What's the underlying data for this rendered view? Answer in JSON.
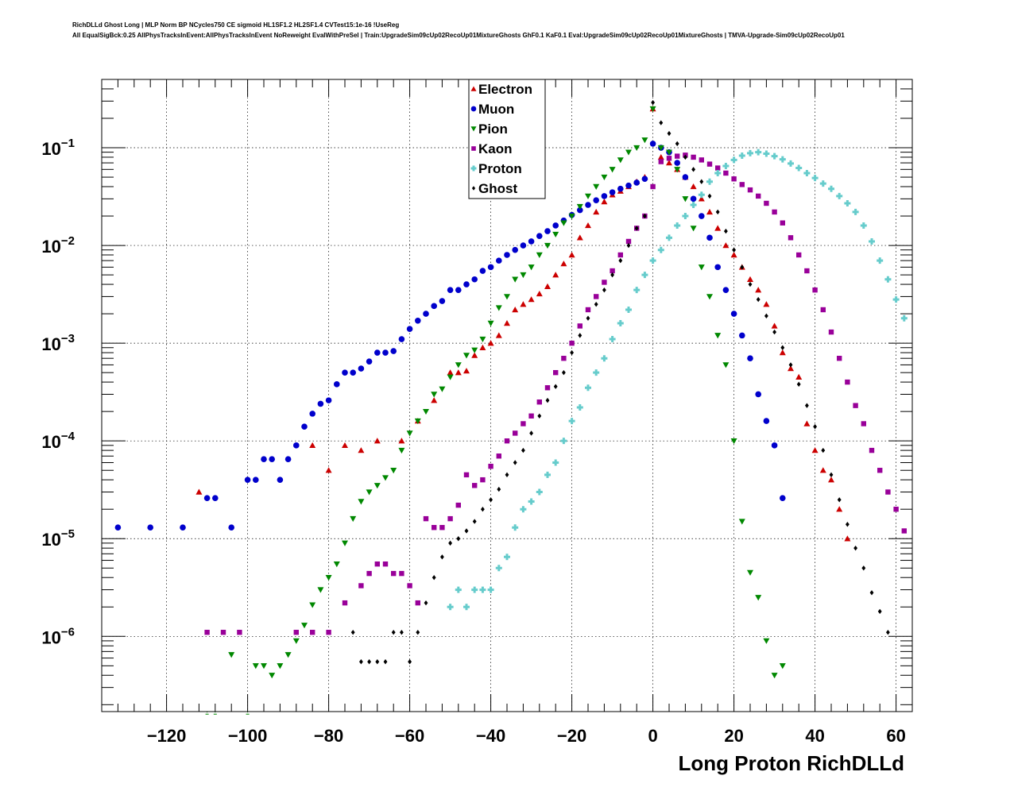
{
  "header": {
    "line1": "RichDLLd Ghost Long | MLP Norm BP NCycles750 CE sigmoid HL1SF1.2 HL2SF1.4 CVTest15:1e-16 !UseReg",
    "line2": "All EqualSigBck:0.25 AllPhysTracksInEvent:AllPhysTracksInEvent NoReweight EvalWithPreSel | Train:UpgradeSim09cUp02RecoUp01MixtureGhosts GhF0.1 KaF0.1 Eval:UpgradeSim09cUp02RecoUp01MixtureGhosts | TMVA-Upgrade-Sim09cUp02RecoUp01"
  },
  "chart_data": {
    "type": "scatter",
    "title": "",
    "xlabel": "Long Proton RichDLLd",
    "ylabel": "",
    "xlim": [
      -136,
      64
    ],
    "ylim": [
      1.7e-07,
      0.5
    ],
    "yscale": "log",
    "grid": true,
    "legend_position": "top-center",
    "x_ticks": [
      -120,
      -100,
      -80,
      -60,
      -40,
      -20,
      0,
      20,
      40,
      60
    ],
    "x_tick_labels": [
      "−120",
      "−100",
      "−80",
      "−60",
      "−40",
      "−20",
      "0",
      "20",
      "40",
      "60"
    ],
    "y_ticks": [
      {
        "value": 1e-06,
        "base": "10",
        "exp": "−6"
      },
      {
        "value": 1e-05,
        "base": "10",
        "exp": "−5"
      },
      {
        "value": 0.0001,
        "base": "10",
        "exp": "−4"
      },
      {
        "value": 0.001,
        "base": "10",
        "exp": "−3"
      },
      {
        "value": 0.01,
        "base": "10",
        "exp": "−2"
      },
      {
        "value": 0.1,
        "base": "10",
        "exp": "−1"
      }
    ],
    "series": [
      {
        "name": "Electron",
        "color": "#cc0000",
        "marker": "triangle-up",
        "x": [
          -112,
          -84,
          -80,
          -76,
          -72,
          -68,
          -62,
          -58,
          -54,
          -50,
          -48,
          -46,
          -44,
          -42,
          -40,
          -38,
          -36,
          -34,
          -32,
          -30,
          -28,
          -26,
          -24,
          -22,
          -20,
          -18,
          -16,
          -14,
          -12,
          -10,
          -8,
          -6,
          -4,
          -2,
          0,
          2,
          4,
          6,
          8,
          10,
          12,
          14,
          16,
          18,
          20,
          22,
          24,
          26,
          28,
          30,
          32,
          34,
          36,
          38,
          40,
          42,
          44,
          46,
          48
        ],
        "y": [
          3e-05,
          9e-05,
          5e-05,
          9e-05,
          8e-05,
          0.0001,
          0.0001,
          0.00016,
          0.00026,
          0.0005,
          0.0005,
          0.00052,
          0.00075,
          0.0009,
          0.001,
          0.0012,
          0.0016,
          0.0022,
          0.0025,
          0.0028,
          0.0032,
          0.0038,
          0.005,
          0.0065,
          0.008,
          0.012,
          0.016,
          0.022,
          0.028,
          0.033,
          0.036,
          0.04,
          0.045,
          0.05,
          0.25,
          0.08,
          0.07,
          0.06,
          0.05,
          0.04,
          0.03,
          0.022,
          0.015,
          0.01,
          0.008,
          0.006,
          0.0045,
          0.0035,
          0.0025,
          0.0015,
          0.0008,
          0.00055,
          0.00045,
          0.00015,
          8e-05,
          5e-05,
          4e-05,
          2e-05,
          1e-05
        ]
      },
      {
        "name": "Muon",
        "color": "#0000cc",
        "marker": "circle",
        "x": [
          -132,
          -124,
          -116,
          -110,
          -108,
          -104,
          -100,
          -98,
          -96,
          -94,
          -92,
          -90,
          -88,
          -86,
          -84,
          -82,
          -80,
          -78,
          -76,
          -74,
          -72,
          -70,
          -68,
          -66,
          -64,
          -62,
          -60,
          -58,
          -56,
          -54,
          -52,
          -50,
          -48,
          -46,
          -44,
          -42,
          -40,
          -38,
          -36,
          -34,
          -32,
          -30,
          -28,
          -26,
          -24,
          -22,
          -20,
          -18,
          -16,
          -14,
          -12,
          -10,
          -8,
          -6,
          -4,
          -2,
          0,
          2,
          4,
          6,
          8,
          10,
          12,
          14,
          16,
          18,
          20,
          22,
          24,
          26,
          28,
          30,
          32
        ],
        "y": [
          1.3e-05,
          1.3e-05,
          1.3e-05,
          2.6e-05,
          2.6e-05,
          1.3e-05,
          4e-05,
          4e-05,
          6.5e-05,
          6.5e-05,
          4e-05,
          6.5e-05,
          9e-05,
          0.00014,
          0.00019,
          0.00024,
          0.00026,
          0.00038,
          0.0005,
          0.0005,
          0.00055,
          0.00065,
          0.0008,
          0.0008,
          0.00083,
          0.0011,
          0.0014,
          0.0017,
          0.002,
          0.0024,
          0.0027,
          0.0035,
          0.0035,
          0.004,
          0.0045,
          0.0055,
          0.006,
          0.007,
          0.008,
          0.009,
          0.01,
          0.011,
          0.0125,
          0.014,
          0.016,
          0.018,
          0.0205,
          0.023,
          0.026,
          0.029,
          0.032,
          0.035,
          0.038,
          0.041,
          0.044,
          0.048,
          0.11,
          0.1,
          0.09,
          0.07,
          0.05,
          0.03,
          0.02,
          0.012,
          0.006,
          0.0035,
          0.002,
          0.0012,
          0.0007,
          0.0003,
          0.00016,
          9e-05,
          2.6e-05
        ]
      },
      {
        "name": "Pion",
        "color": "#008800",
        "marker": "triangle-down",
        "x": [
          -110,
          -108,
          -104,
          -100,
          -98,
          -96,
          -94,
          -92,
          -90,
          -88,
          -86,
          -84,
          -82,
          -80,
          -78,
          -76,
          -74,
          -72,
          -70,
          -68,
          -66,
          -64,
          -62,
          -60,
          -58,
          -56,
          -54,
          -52,
          -50,
          -48,
          -46,
          -44,
          -42,
          -40,
          -38,
          -36,
          -34,
          -32,
          -30,
          -28,
          -26,
          -24,
          -22,
          -20,
          -18,
          -16,
          -14,
          -12,
          -10,
          -8,
          -6,
          -4,
          -2,
          0,
          2,
          4,
          6,
          8,
          10,
          12,
          14,
          16,
          18,
          20,
          22,
          24,
          26,
          28,
          30,
          32
        ],
        "y": [
          1.6e-07,
          1.6e-07,
          6.5e-07,
          1.6e-07,
          5e-07,
          5e-07,
          4e-07,
          5e-07,
          6.5e-07,
          9e-07,
          1.3e-06,
          2.1e-06,
          3e-06,
          4e-06,
          5.5e-06,
          9e-06,
          1.6e-05,
          2.4e-05,
          3e-05,
          3.5e-05,
          4.2e-05,
          5e-05,
          8e-05,
          0.00012,
          0.00016,
          0.0002,
          0.0003,
          0.00034,
          0.00045,
          0.0006,
          0.00075,
          0.00085,
          0.0011,
          0.0016,
          0.0023,
          0.003,
          0.0045,
          0.005,
          0.006,
          0.008,
          0.01,
          0.013,
          0.017,
          0.02,
          0.025,
          0.032,
          0.04,
          0.05,
          0.06,
          0.075,
          0.09,
          0.1,
          0.12,
          0.25,
          0.1,
          0.09,
          0.06,
          0.03,
          0.015,
          0.006,
          0.003,
          0.0012,
          0.0006,
          0.0001,
          1.5e-05,
          4.5e-06,
          2.5e-06,
          9e-07,
          4e-07,
          5e-07
        ]
      },
      {
        "name": "Kaon",
        "color": "#990099",
        "marker": "square",
        "x": [
          -110,
          -106,
          -102,
          -88,
          -84,
          -80,
          -76,
          -72,
          -70,
          -68,
          -66,
          -64,
          -62,
          -60,
          -58,
          -56,
          -54,
          -52,
          -50,
          -48,
          -46,
          -44,
          -42,
          -40,
          -38,
          -36,
          -34,
          -32,
          -30,
          -28,
          -26,
          -24,
          -22,
          -20,
          -18,
          -16,
          -14,
          -12,
          -10,
          -8,
          -6,
          -4,
          -2,
          0,
          2,
          4,
          6,
          8,
          10,
          12,
          14,
          16,
          18,
          20,
          22,
          24,
          26,
          28,
          30,
          32,
          34,
          36,
          38,
          40,
          42,
          44,
          46,
          48,
          50,
          52,
          54,
          56,
          58,
          60,
          62
        ],
        "y": [
          1.1e-06,
          1.1e-06,
          1.1e-06,
          1.1e-06,
          1.1e-06,
          1.1e-06,
          2.2e-06,
          3.3e-06,
          4.4e-06,
          5.5e-06,
          5.5e-06,
          4.4e-06,
          4.4e-06,
          3.3e-06,
          2.2e-06,
          1.6e-05,
          1.3e-05,
          1.3e-05,
          1.6e-05,
          2.2e-05,
          4.5e-05,
          3.5e-05,
          4e-05,
          5.5e-05,
          7e-05,
          0.0001,
          0.00012,
          0.00015,
          0.00018,
          0.00025,
          0.00035,
          0.0005,
          0.0007,
          0.001,
          0.0015,
          0.0022,
          0.003,
          0.0042,
          0.0055,
          0.008,
          0.011,
          0.015,
          0.02,
          0.04,
          0.072,
          0.078,
          0.082,
          0.084,
          0.08,
          0.075,
          0.068,
          0.062,
          0.055,
          0.048,
          0.042,
          0.037,
          0.032,
          0.027,
          0.022,
          0.017,
          0.012,
          0.008,
          0.0055,
          0.0035,
          0.0022,
          0.0013,
          0.0007,
          0.0004,
          0.00023,
          0.00015,
          8e-05,
          5e-05,
          3e-05,
          2e-05,
          1.2e-05
        ]
      },
      {
        "name": "Proton",
        "color": "#66cccc",
        "marker": "cross",
        "x": [
          -50,
          -48,
          -46,
          -44,
          -42,
          -40,
          -38,
          -36,
          -34,
          -32,
          -30,
          -28,
          -26,
          -24,
          -22,
          -20,
          -18,
          -16,
          -14,
          -12,
          -10,
          -8,
          -6,
          -4,
          -2,
          0,
          2,
          4,
          6,
          8,
          10,
          12,
          14,
          16,
          18,
          20,
          22,
          24,
          26,
          28,
          30,
          32,
          34,
          36,
          38,
          40,
          42,
          44,
          46,
          48,
          50,
          52,
          54,
          56,
          58,
          60,
          62
        ],
        "y": [
          2e-06,
          3e-06,
          2e-06,
          3e-06,
          3e-06,
          3e-06,
          5e-06,
          6.5e-06,
          1.3e-05,
          2e-05,
          2.4e-05,
          3e-05,
          4.5e-05,
          6e-05,
          0.0001,
          0.00016,
          0.00022,
          0.00035,
          0.0005,
          0.0007,
          0.0011,
          0.0016,
          0.0022,
          0.0035,
          0.005,
          0.007,
          0.009,
          0.012,
          0.016,
          0.02,
          0.026,
          0.033,
          0.045,
          0.055,
          0.065,
          0.075,
          0.083,
          0.088,
          0.09,
          0.087,
          0.082,
          0.076,
          0.069,
          0.062,
          0.055,
          0.049,
          0.043,
          0.038,
          0.032,
          0.027,
          0.022,
          0.016,
          0.011,
          0.007,
          0.0045,
          0.0028,
          0.0018
        ]
      },
      {
        "name": "Ghost",
        "color": "#000000",
        "marker": "diamond",
        "x": [
          -74,
          -72,
          -70,
          -68,
          -66,
          -64,
          -62,
          -60,
          -58,
          -56,
          -54,
          -52,
          -50,
          -48,
          -46,
          -44,
          -42,
          -40,
          -38,
          -36,
          -34,
          -32,
          -30,
          -28,
          -26,
          -24,
          -22,
          -20,
          -18,
          -16,
          -14,
          -12,
          -10,
          -8,
          -6,
          -4,
          -2,
          0,
          2,
          4,
          6,
          8,
          10,
          12,
          14,
          16,
          18,
          20,
          22,
          24,
          26,
          28,
          30,
          32,
          34,
          36,
          38,
          40,
          42,
          44,
          46,
          48,
          50,
          52,
          54,
          56,
          58
        ],
        "y": [
          1.1e-06,
          5.5e-07,
          5.5e-07,
          5.5e-07,
          5.5e-07,
          1.1e-06,
          1.1e-06,
          5.5e-07,
          1.1e-06,
          2.2e-06,
          4e-06,
          6.5e-06,
          9e-06,
          1e-05,
          1.2e-05,
          1.5e-05,
          2e-05,
          2.5e-05,
          3.2e-05,
          4.5e-05,
          6e-05,
          8e-05,
          0.00012,
          0.00018,
          0.00026,
          0.00036,
          0.0005,
          0.0008,
          0.0012,
          0.0018,
          0.0025,
          0.0035,
          0.005,
          0.007,
          0.01,
          0.015,
          0.02,
          0.29,
          0.18,
          0.14,
          0.11,
          0.08,
          0.06,
          0.045,
          0.032,
          0.022,
          0.014,
          0.009,
          0.006,
          0.004,
          0.0028,
          0.0019,
          0.0013,
          0.0009,
          0.0006,
          0.00038,
          0.00023,
          0.00014,
          8e-05,
          4.5e-05,
          2.5e-05,
          1.4e-05,
          8e-06,
          5e-06,
          2.8e-06,
          1.8e-06,
          1.1e-06
        ]
      }
    ]
  }
}
